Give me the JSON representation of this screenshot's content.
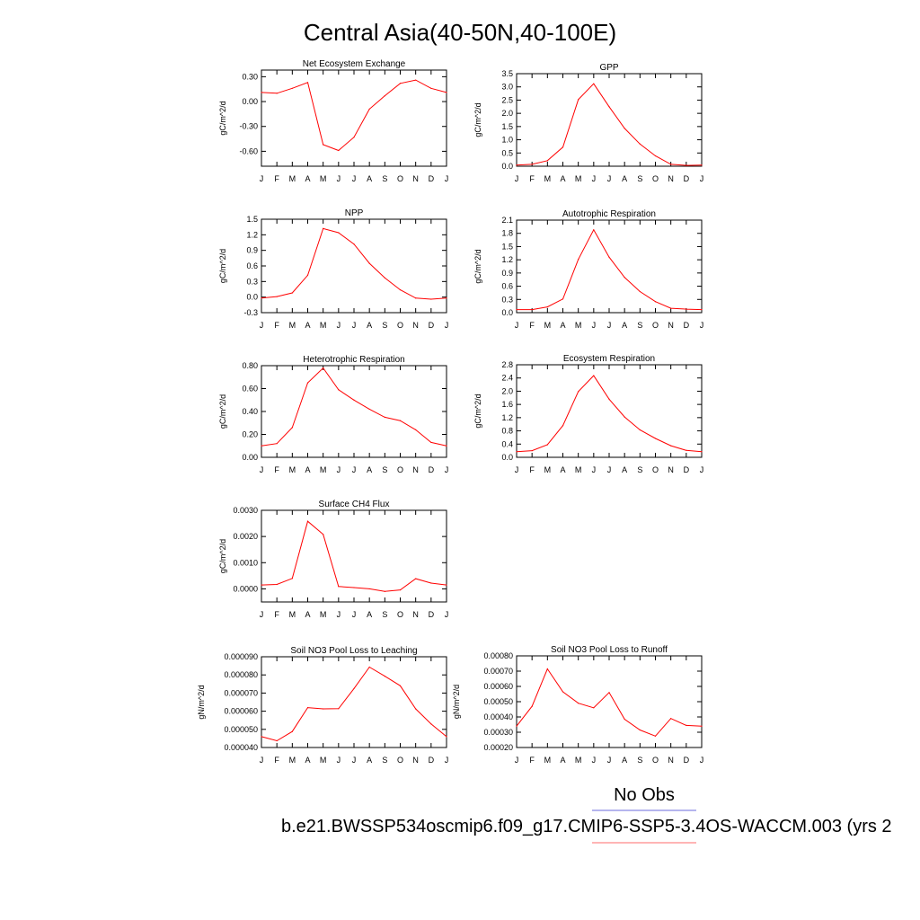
{
  "figure": {
    "title": "Central Asia(40-50N,40-100E)",
    "legend": {
      "label": "No Obs",
      "line_color": "#6b6bdd"
    },
    "footer": {
      "text": "b.e21.BWSSP534oscmip6.f09_g17.CMIP6-SSP5-3.4OS-WACCM.003 (yrs 2",
      "line_color": "#ff6b6b"
    }
  },
  "chart_data": [
    {
      "type": "line",
      "title": "Net Ecosystem Exchange",
      "ylabel": "gC/m^2/d",
      "x": [
        "J",
        "F",
        "M",
        "A",
        "M",
        "J",
        "J",
        "A",
        "S",
        "O",
        "N",
        "D",
        "J"
      ],
      "ylim": [
        -0.78,
        0.38
      ],
      "yticks": [
        0.3,
        0.0,
        -0.3,
        -0.6
      ],
      "ytick_labels": [
        "0.30",
        "0.00",
        "-0.30",
        "-0.60"
      ],
      "series": [
        {
          "color": "#ff0000",
          "values": [
            0.11,
            0.1,
            0.16,
            0.23,
            -0.52,
            -0.59,
            -0.43,
            -0.09,
            0.07,
            0.22,
            0.26,
            0.16,
            0.11
          ]
        }
      ]
    },
    {
      "type": "line",
      "title": "GPP",
      "ylabel": "gC/m^2/d",
      "x": [
        "J",
        "F",
        "M",
        "A",
        "M",
        "J",
        "J",
        "A",
        "S",
        "O",
        "N",
        "D",
        "J"
      ],
      "ylim": [
        0,
        3.5
      ],
      "yticks": [
        0,
        0.5,
        1,
        1.5,
        2,
        2.5,
        3,
        3.5
      ],
      "ytick_labels": [
        "0.0",
        "0.5",
        "1.0",
        "1.5",
        "2.0",
        "2.5",
        "3.0",
        "3.5"
      ],
      "series": [
        {
          "color": "#ff0000",
          "values": [
            0.04,
            0.07,
            0.21,
            0.72,
            2.52,
            3.12,
            2.25,
            1.43,
            0.84,
            0.39,
            0.07,
            0.03,
            0.04
          ]
        }
      ]
    },
    {
      "type": "line",
      "title": "NPP",
      "ylabel": "gC/m^2/d",
      "x": [
        "J",
        "F",
        "M",
        "A",
        "M",
        "J",
        "J",
        "A",
        "S",
        "O",
        "N",
        "D",
        "J"
      ],
      "ylim": [
        -0.3,
        1.5
      ],
      "yticks": [
        -0.3,
        0,
        0.3,
        0.6,
        0.9,
        1.2,
        1.5
      ],
      "ytick_labels": [
        "-0.3",
        "0.0",
        "0.3",
        "0.6",
        "0.9",
        "1.2",
        "1.5"
      ],
      "series": [
        {
          "color": "#ff0000",
          "values": [
            -0.02,
            0.01,
            0.08,
            0.42,
            1.32,
            1.24,
            1.02,
            0.65,
            0.37,
            0.14,
            -0.02,
            -0.04,
            -0.02
          ]
        }
      ]
    },
    {
      "type": "line",
      "title": "Autotrophic Respiration",
      "ylabel": "gC/m^2/d",
      "x": [
        "J",
        "F",
        "M",
        "A",
        "M",
        "J",
        "J",
        "A",
        "S",
        "O",
        "N",
        "D",
        "J"
      ],
      "ylim": [
        0,
        2.1
      ],
      "yticks": [
        0,
        0.3,
        0.6,
        0.9,
        1.2,
        1.5,
        1.8,
        2.1
      ],
      "ytick_labels": [
        "0.0",
        "0.3",
        "0.6",
        "0.9",
        "1.2",
        "1.5",
        "1.8",
        "2.1"
      ],
      "series": [
        {
          "color": "#ff0000",
          "values": [
            0.07,
            0.07,
            0.13,
            0.31,
            1.21,
            1.88,
            1.26,
            0.8,
            0.48,
            0.25,
            0.1,
            0.08,
            0.07
          ]
        }
      ]
    },
    {
      "type": "line",
      "title": "Heterotrophic Respiration",
      "ylabel": "gC/m^2/d",
      "x": [
        "J",
        "F",
        "M",
        "A",
        "M",
        "J",
        "J",
        "A",
        "S",
        "O",
        "N",
        "D",
        "J"
      ],
      "ylim": [
        0,
        0.8
      ],
      "yticks": [
        0,
        0.2,
        0.4,
        0.6,
        0.8
      ],
      "ytick_labels": [
        "0.00",
        "0.20",
        "0.40",
        "0.60",
        "0.80"
      ],
      "series": [
        {
          "color": "#ff0000",
          "values": [
            0.1,
            0.12,
            0.26,
            0.65,
            0.78,
            0.59,
            0.5,
            0.42,
            0.35,
            0.32,
            0.24,
            0.13,
            0.1
          ]
        }
      ]
    },
    {
      "type": "line",
      "title": "Ecosystem Respiration",
      "ylabel": "gC/m^2/d",
      "x": [
        "J",
        "F",
        "M",
        "A",
        "M",
        "J",
        "J",
        "A",
        "S",
        "O",
        "N",
        "D",
        "J"
      ],
      "ylim": [
        0,
        2.8
      ],
      "yticks": [
        0,
        0.4,
        0.8,
        1.2,
        1.6,
        2.0,
        2.4,
        2.8
      ],
      "ytick_labels": [
        "0.0",
        "0.4",
        "0.8",
        "1.2",
        "1.6",
        "2.0",
        "2.4",
        "2.8"
      ],
      "series": [
        {
          "color": "#ff0000",
          "values": [
            0.17,
            0.2,
            0.38,
            0.96,
            1.99,
            2.47,
            1.76,
            1.22,
            0.83,
            0.57,
            0.35,
            0.21,
            0.17
          ]
        }
      ]
    },
    {
      "type": "line",
      "title": "Surface CH4 Flux",
      "ylabel": "gC/m^2/d",
      "x": [
        "J",
        "F",
        "M",
        "A",
        "M",
        "J",
        "J",
        "A",
        "S",
        "O",
        "N",
        "D",
        "J"
      ],
      "ylim": [
        -0.0005,
        0.003
      ],
      "yticks": [
        0,
        0.001,
        0.002,
        0.003
      ],
      "ytick_labels": [
        "0.0000",
        "0.0010",
        "0.0020",
        "0.0030"
      ],
      "series": [
        {
          "color": "#ff0000",
          "values": [
            0.00015,
            0.00017,
            0.0004,
            0.00258,
            0.00208,
            9e-05,
            5e-05,
            0.0,
            -0.0001,
            -4e-05,
            0.00039,
            0.00022,
            0.00015
          ]
        }
      ]
    },
    {
      "type": "line",
      "title": "Soil NO3 Pool Loss to Leaching",
      "ylabel": "gN/m^2/d",
      "x": [
        "J",
        "F",
        "M",
        "A",
        "M",
        "J",
        "J",
        "A",
        "S",
        "O",
        "N",
        "D",
        "J"
      ],
      "ylim": [
        4e-05,
        9e-05
      ],
      "yticks": [
        4e-05,
        5e-05,
        6e-05,
        7e-05,
        8e-05,
        9e-05
      ],
      "ytick_labels": [
        "0.000040",
        "0.000050",
        "0.000060",
        "0.000070",
        "0.000080",
        "0.000090"
      ],
      "series": [
        {
          "color": "#ff0000",
          "values": [
            4.6e-05,
            4.37e-05,
            4.88e-05,
            6.2e-05,
            6.13e-05,
            6.14e-05,
            7.25e-05,
            8.43e-05,
            7.93e-05,
            7.4e-05,
            6.13e-05,
            5.3e-05,
            4.6e-05
          ]
        }
      ]
    },
    {
      "type": "line",
      "title": "Soil NO3 Pool Loss to Runoff",
      "ylabel": "gN/m^2/d",
      "x": [
        "J",
        "F",
        "M",
        "A",
        "M",
        "J",
        "J",
        "A",
        "S",
        "O",
        "N",
        "D",
        "J"
      ],
      "ylim": [
        0.0002,
        0.0008
      ],
      "yticks": [
        0.0002,
        0.0003,
        0.0004,
        0.0005,
        0.0006,
        0.0007,
        0.0008
      ],
      "ytick_labels": [
        "0.00020",
        "0.00030",
        "0.00040",
        "0.00050",
        "0.00060",
        "0.00070",
        "0.00080"
      ],
      "series": [
        {
          "color": "#ff0000",
          "values": [
            0.00034,
            0.00047,
            0.000715,
            0.000565,
            0.00049,
            0.00046,
            0.00056,
            0.000385,
            0.000315,
            0.000275,
            0.00039,
            0.000345,
            0.00034
          ]
        }
      ]
    }
  ]
}
